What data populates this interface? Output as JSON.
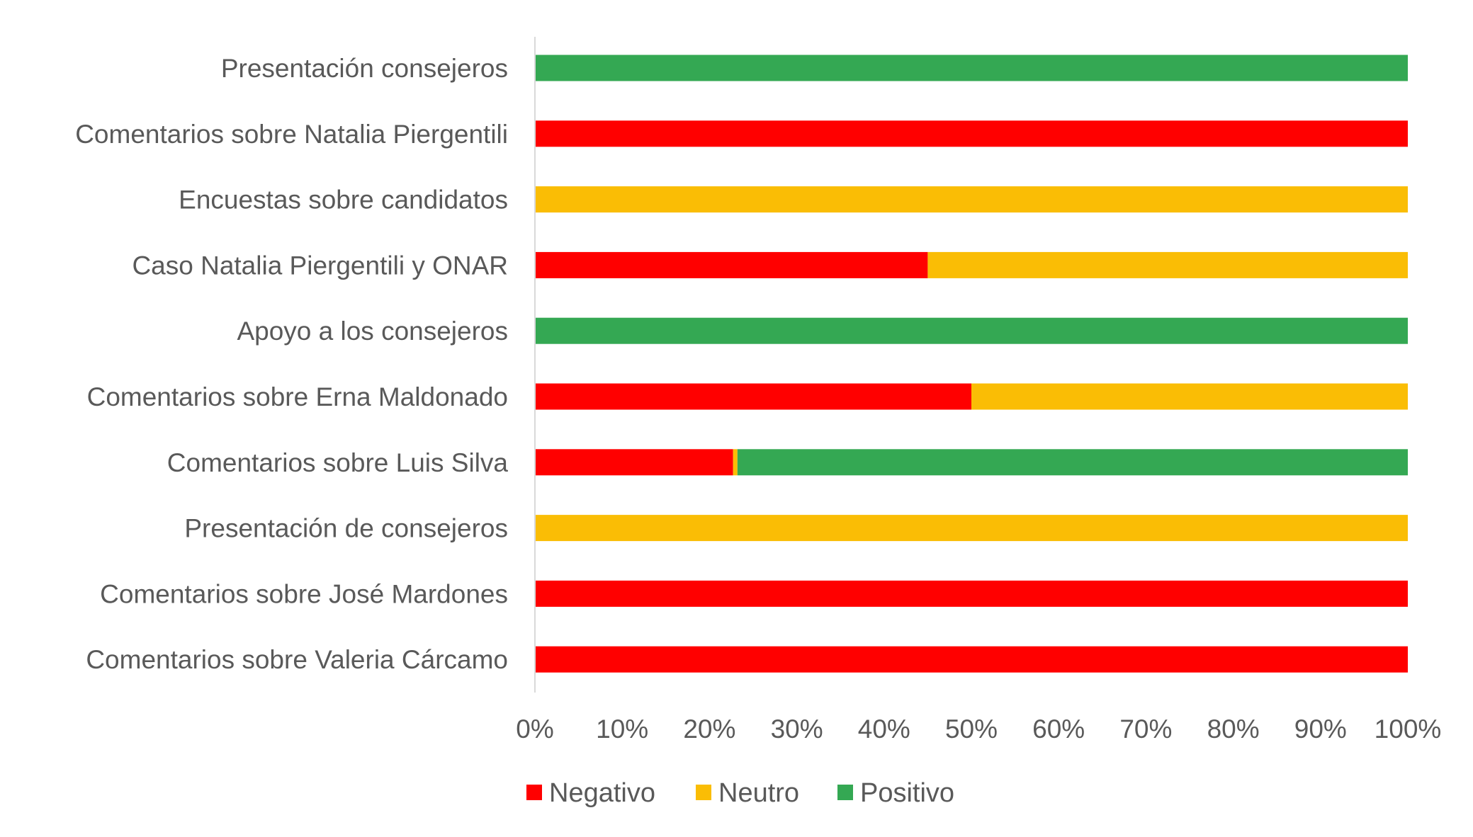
{
  "chart_data": {
    "type": "bar",
    "orientation": "horizontal",
    "stacked": "percent",
    "categories": [
      "Presentación  consejeros",
      "Comentarios sobre Natalia Piergentili",
      "Encuestas sobre candidatos",
      "Caso Natalia Piergentili y ONAR",
      "Apoyo a los consejeros",
      "Comentarios sobre Erna Maldonado",
      "Comentarios sobre Luis Silva",
      "Presentación de consejeros",
      "Comentarios sobre José Mardones",
      "Comentarios sobre Valeria Cárcamo"
    ],
    "series": [
      {
        "name": "Negativo",
        "color": "#FF0000",
        "values": [
          0,
          100,
          0,
          45,
          0,
          50,
          22.7,
          0,
          100,
          100
        ]
      },
      {
        "name": "Neutro",
        "color": "#FABD05",
        "values": [
          0,
          0,
          100,
          55,
          0,
          50,
          0.5,
          100,
          0,
          0
        ]
      },
      {
        "name": "Positivo",
        "color": "#34A853",
        "values": [
          100,
          0,
          0,
          0,
          100,
          0,
          76.8,
          0,
          0,
          0
        ]
      }
    ],
    "xlim": [
      0,
      100
    ],
    "xticks": [
      "0%",
      "10%",
      "20%",
      "30%",
      "40%",
      "50%",
      "60%",
      "70%",
      "80%",
      "90%",
      "100%"
    ],
    "title": "",
    "xlabel": "",
    "ylabel": "",
    "grid": false,
    "legend_position": "bottom"
  }
}
